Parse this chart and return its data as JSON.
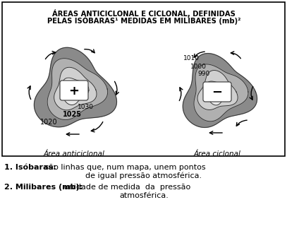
{
  "title_line1": "ÁREAS ANTICICLONAL E CICLONAL, DEFINIDAS",
  "title_line2": "PELAS ISÓBARAS¹ MEDIDAS EM MILIBARES (mb)²",
  "left_label": "Área anticiclonal",
  "right_label": "Área ciclonal",
  "left_plus": "+",
  "right_minus": "−",
  "left_labels": [
    "1030",
    "1025",
    "1020"
  ],
  "right_labels": [
    "1010",
    "1000",
    "990"
  ],
  "fn1_bold": "1. Isóbaras:",
  "fn1_rest": " são linhas que, num mapa, unem pontos",
  "fn1b": "de igual pressão atmosférica.",
  "fn2_bold": "2. Milibares (mb):",
  "fn2_rest": " unidade de medida  da  pressão",
  "fn2b": "atmosférica.",
  "bg_color": "#ffffff",
  "border_color": "#333333",
  "dark_gray": "#8a8a8a",
  "mid_gray": "#b0b0b0",
  "light_gray": "#d0d0d0",
  "very_light": "#e8e8e8",
  "white": "#ffffff"
}
